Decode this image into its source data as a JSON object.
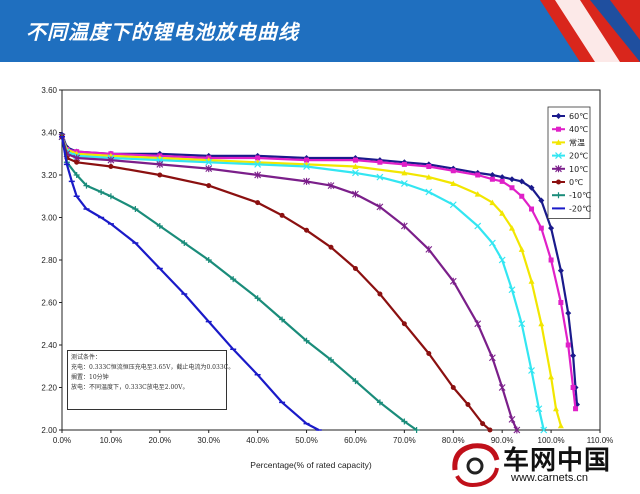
{
  "header": {
    "title": "不同温度下的锂电池放电曲线",
    "color": "#1f6fbf"
  },
  "chart_data": {
    "type": "line",
    "title": "",
    "xlabel": "Percentage(% of rated capacity)",
    "ylabel": "",
    "xlim": [
      0,
      110
    ],
    "ylim": [
      2.0,
      3.6
    ],
    "x_ticks": [
      "0.0%",
      "10.0%",
      "20.0%",
      "30.0%",
      "40.0%",
      "50.0%",
      "60.0%",
      "70.0%",
      "80.0%",
      "90.0%",
      "100.0%",
      "110.0%"
    ],
    "y_ticks": [
      "2.00",
      "2.20",
      "2.40",
      "2.60",
      "2.80",
      "3.00",
      "3.20",
      "3.40",
      "3.60"
    ],
    "grid": false,
    "legend_position": "top-right",
    "series": [
      {
        "name": "60℃",
        "color": "#1a1a8c",
        "marker": "diamond",
        "x": [
          0,
          1,
          3,
          10,
          20,
          30,
          40,
          50,
          60,
          65,
          70,
          75,
          80,
          85,
          88,
          90,
          92,
          94,
          96,
          98,
          100,
          102,
          103.5,
          104.5,
          105,
          105.3
        ],
        "y": [
          3.39,
          3.33,
          3.31,
          3.3,
          3.3,
          3.29,
          3.29,
          3.28,
          3.28,
          3.27,
          3.26,
          3.25,
          3.23,
          3.21,
          3.2,
          3.19,
          3.18,
          3.17,
          3.14,
          3.08,
          2.95,
          2.75,
          2.55,
          2.35,
          2.2,
          2.12
        ]
      },
      {
        "name": "40℃",
        "color": "#e020c8",
        "marker": "square",
        "x": [
          0,
          1,
          3,
          10,
          20,
          30,
          40,
          50,
          60,
          65,
          70,
          75,
          80,
          85,
          88,
          90,
          92,
          94,
          96,
          98,
          100,
          102,
          103.5,
          104.5,
          105
        ],
        "y": [
          3.38,
          3.32,
          3.31,
          3.3,
          3.29,
          3.28,
          3.28,
          3.27,
          3.27,
          3.26,
          3.25,
          3.24,
          3.22,
          3.2,
          3.18,
          3.17,
          3.14,
          3.1,
          3.04,
          2.95,
          2.8,
          2.6,
          2.4,
          2.2,
          2.1
        ]
      },
      {
        "name": "常温",
        "color": "#f2e600",
        "marker": "triangle",
        "x": [
          0,
          1,
          3,
          10,
          20,
          30,
          40,
          50,
          60,
          70,
          75,
          80,
          85,
          88,
          90,
          92,
          94,
          96,
          98,
          100,
          101,
          102
        ],
        "y": [
          3.38,
          3.32,
          3.3,
          3.29,
          3.28,
          3.27,
          3.26,
          3.25,
          3.24,
          3.21,
          3.19,
          3.16,
          3.11,
          3.07,
          3.02,
          2.95,
          2.85,
          2.7,
          2.5,
          2.25,
          2.1,
          2.02
        ]
      },
      {
        "name": "20℃",
        "color": "#33e6f2",
        "marker": "x",
        "x": [
          0,
          1,
          3,
          10,
          20,
          30,
          40,
          50,
          60,
          65,
          70,
          75,
          80,
          85,
          88,
          90,
          92,
          94,
          96,
          97.5,
          98.5
        ],
        "y": [
          3.38,
          3.31,
          3.29,
          3.28,
          3.27,
          3.26,
          3.25,
          3.24,
          3.21,
          3.19,
          3.16,
          3.12,
          3.06,
          2.96,
          2.88,
          2.8,
          2.66,
          2.5,
          2.28,
          2.1,
          2.0
        ]
      },
      {
        "name": "10℃",
        "color": "#7b1f8a",
        "marker": "star",
        "x": [
          0,
          1,
          3,
          10,
          20,
          30,
          40,
          50,
          55,
          60,
          65,
          70,
          75,
          80,
          85,
          88,
          90,
          92,
          93
        ],
        "y": [
          3.38,
          3.3,
          3.28,
          3.27,
          3.25,
          3.23,
          3.2,
          3.17,
          3.15,
          3.11,
          3.05,
          2.96,
          2.85,
          2.7,
          2.5,
          2.34,
          2.2,
          2.05,
          2.0
        ]
      },
      {
        "name": "0℃",
        "color": "#8b1010",
        "marker": "circle",
        "x": [
          0,
          1,
          3,
          10,
          20,
          30,
          40,
          45,
          50,
          55,
          60,
          65,
          70,
          75,
          80,
          83,
          86,
          87.5
        ],
        "y": [
          3.38,
          3.28,
          3.26,
          3.24,
          3.2,
          3.15,
          3.07,
          3.01,
          2.94,
          2.86,
          2.76,
          2.64,
          2.5,
          2.36,
          2.2,
          2.12,
          2.03,
          2.0
        ]
      },
      {
        "name": "-10℃",
        "color": "#1a8c7a",
        "marker": "plus",
        "x": [
          0,
          1,
          3,
          5,
          8,
          10,
          15,
          20,
          25,
          30,
          35,
          40,
          45,
          50,
          55,
          60,
          65,
          70,
          72.5
        ],
        "y": [
          3.38,
          3.26,
          3.2,
          3.15,
          3.12,
          3.1,
          3.04,
          2.96,
          2.88,
          2.8,
          2.71,
          2.62,
          2.52,
          2.42,
          2.33,
          2.23,
          2.13,
          2.04,
          2.0
        ]
      },
      {
        "name": "-20℃",
        "color": "#1a1ac8",
        "marker": "dash",
        "x": [
          0,
          1,
          2,
          3,
          5,
          8,
          10,
          15,
          20,
          25,
          30,
          35,
          40,
          45,
          50,
          52.5
        ],
        "y": [
          3.38,
          3.25,
          3.17,
          3.1,
          3.04,
          3.0,
          2.97,
          2.88,
          2.76,
          2.64,
          2.51,
          2.38,
          2.26,
          2.13,
          2.03,
          2.0
        ]
      }
    ]
  },
  "note": {
    "lines": [
      "测试条件：",
      "充电：0.333C恒流恒压充电至3.65V，截止电流为0.033C。",
      "搁置：10分钟",
      "放电：不同温度下，0.333C放电至2.00V。"
    ]
  },
  "watermark": {
    "name": "车网中国",
    "url": "www.carnets.cn"
  }
}
